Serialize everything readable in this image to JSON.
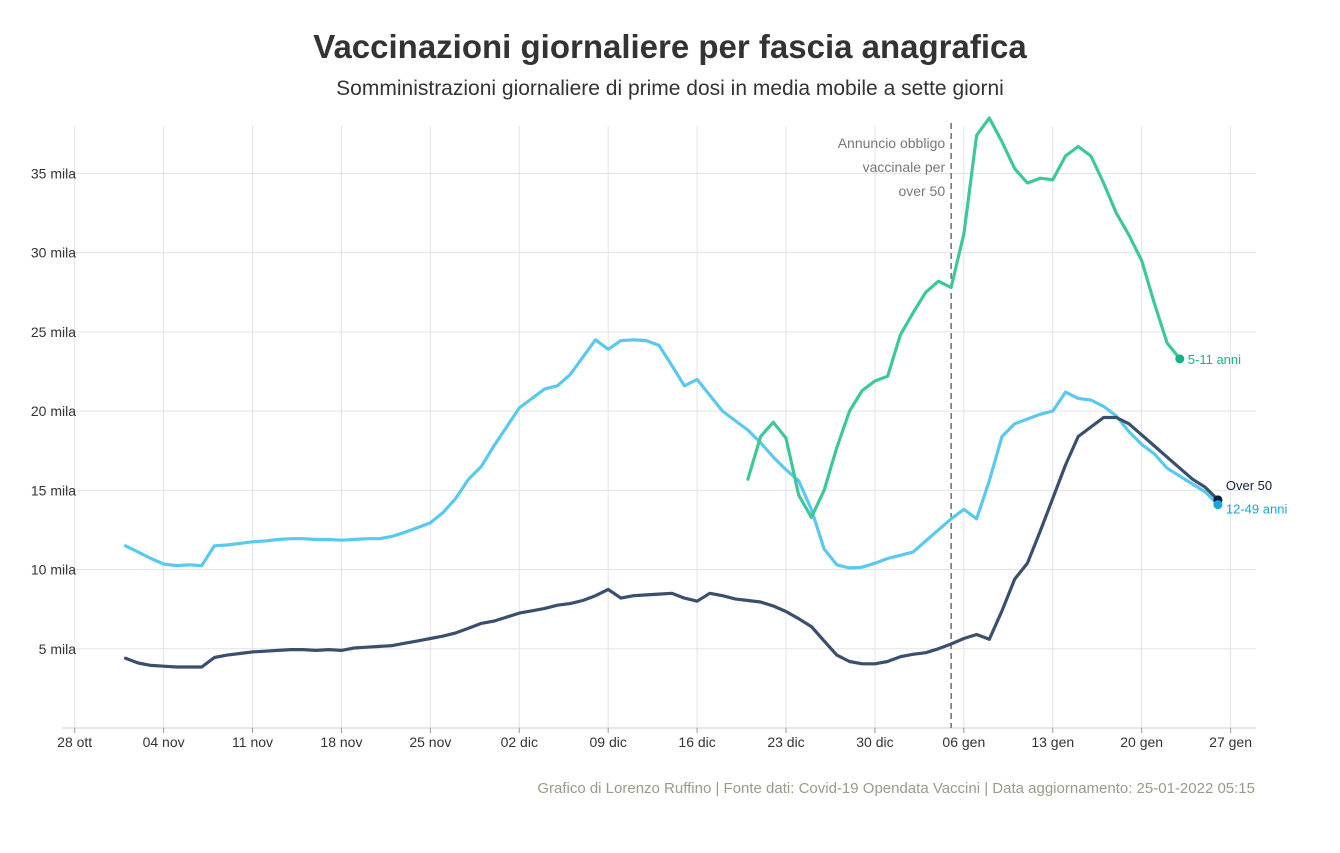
{
  "title": "Vaccinazioni giornaliere per fascia anagrafica",
  "subtitle": "Somministrazioni giornaliere di prime dosi in media mobile a sette giorni",
  "caption": "Grafico di Lorenzo Ruffino | Fonte dati: Covid-19 Opendata Vaccini | Data aggiornamento: 25-01-2022 05:15",
  "chart_data": {
    "type": "line",
    "title": "Vaccinazioni giornaliere per fascia anagrafica",
    "subtitle": "Somministrazioni giornaliere di prime dosi in media mobile a sette giorni",
    "xlabel": "",
    "ylabel": "",
    "xlim": [
      "2021-10-27",
      "2022-01-29"
    ],
    "ylim": [
      0,
      38500
    ],
    "x_ticks": [
      {
        "date": "2021-10-28",
        "label": "28 ott"
      },
      {
        "date": "2021-11-04",
        "label": "04 nov"
      },
      {
        "date": "2021-11-11",
        "label": "11 nov"
      },
      {
        "date": "2021-11-18",
        "label": "18 nov"
      },
      {
        "date": "2021-11-25",
        "label": "25 nov"
      },
      {
        "date": "2021-12-02",
        "label": "02 dic"
      },
      {
        "date": "2021-12-09",
        "label": "09 dic"
      },
      {
        "date": "2021-12-16",
        "label": "16 dic"
      },
      {
        "date": "2021-12-23",
        "label": "23 dic"
      },
      {
        "date": "2021-12-30",
        "label": "30 dic"
      },
      {
        "date": "2022-01-06",
        "label": "06 gen"
      },
      {
        "date": "2022-01-13",
        "label": "13 gen"
      },
      {
        "date": "2022-01-20",
        "label": "20 gen"
      },
      {
        "date": "2022-01-27",
        "label": "27 gen"
      }
    ],
    "y_ticks": [
      {
        "value": 5000,
        "label": "5 mila"
      },
      {
        "value": 10000,
        "label": "10 mila"
      },
      {
        "value": 15000,
        "label": "15 mila"
      },
      {
        "value": 20000,
        "label": "20 mila"
      },
      {
        "value": 25000,
        "label": "25 mila"
      },
      {
        "value": 30000,
        "label": "30 mila"
      },
      {
        "value": 35000,
        "label": "35 mila"
      }
    ],
    "grid": true,
    "legend": "direct labels at line ends",
    "annotation": {
      "date": "2022-01-05",
      "lines": [
        "Annuncio obbligo",
        "vaccinale per",
        "over 50"
      ]
    },
    "series": [
      {
        "name": "12-49 anni",
        "color": "#5bc8ef",
        "start": "2021-11-01",
        "values": [
          11500,
          11100,
          10700,
          10350,
          10250,
          10300,
          10250,
          11500,
          11550,
          11650,
          11750,
          11800,
          11900,
          11950,
          11950,
          11900,
          11900,
          11850,
          11900,
          11950,
          11950,
          12100,
          12350,
          12650,
          12950,
          13600,
          14500,
          15700,
          16500,
          17800,
          19000,
          20200,
          20800,
          21400,
          21600,
          22300,
          23400,
          24500,
          23900,
          24450,
          24500,
          24450,
          24150,
          22900,
          21600,
          22000,
          21000,
          20000,
          19400,
          18800,
          18000,
          17100,
          16300,
          15600,
          13800,
          11300,
          10300,
          10100,
          10150,
          10400,
          10700,
          10900,
          11100,
          11800,
          12500,
          13200,
          13800,
          13200,
          15600,
          18400,
          19200,
          19500,
          19800,
          20000,
          21200,
          20800,
          20700,
          20300,
          19700,
          18700,
          17900,
          17300,
          16400,
          15900,
          15400,
          14900,
          14100
        ]
      },
      {
        "name": "Over 50",
        "color": "#3a4f6e",
        "start": "2021-11-01",
        "values": [
          4400,
          4100,
          3950,
          3900,
          3850,
          3850,
          3850,
          4450,
          4600,
          4700,
          4800,
          4850,
          4900,
          4950,
          4950,
          4900,
          4950,
          4900,
          5050,
          5100,
          5150,
          5200,
          5350,
          5500,
          5650,
          5800,
          6000,
          6300,
          6600,
          6750,
          7000,
          7250,
          7400,
          7550,
          7750,
          7850,
          8050,
          8350,
          8750,
          8200,
          8350,
          8400,
          8450,
          8500,
          8200,
          8000,
          8500,
          8350,
          8150,
          8050,
          7950,
          7700,
          7350,
          6900,
          6400,
          5500,
          4600,
          4200,
          4050,
          4050,
          4200,
          4500,
          4650,
          4750,
          5000,
          5300,
          5650,
          5900,
          5600,
          7400,
          9400,
          10400,
          12400,
          14500,
          16600,
          18400,
          19000,
          19600,
          19600,
          19200,
          18500,
          17800,
          17100,
          16400,
          15700,
          15200,
          14400
        ]
      },
      {
        "name": "5-11 anni",
        "color": "#3ec898",
        "start": "2021-12-20",
        "values": [
          15700,
          18400,
          19300,
          18300,
          14700,
          13300,
          15000,
          17700,
          20000,
          21300,
          21900,
          22200,
          24800,
          26200,
          27500,
          28200,
          27800,
          31200,
          37400,
          38500,
          37000,
          35300,
          34400,
          34700,
          34600,
          36100,
          36700,
          36100,
          34400,
          32500,
          31100,
          29500,
          26800,
          24300,
          23300
        ]
      }
    ],
    "end_markers": [
      {
        "series": "5-11 anni",
        "color": "#14b389"
      },
      {
        "series": "Over 50",
        "color": "#0e1e3d"
      },
      {
        "series": "12-49 anni",
        "color": "#1aa5d8"
      }
    ]
  }
}
